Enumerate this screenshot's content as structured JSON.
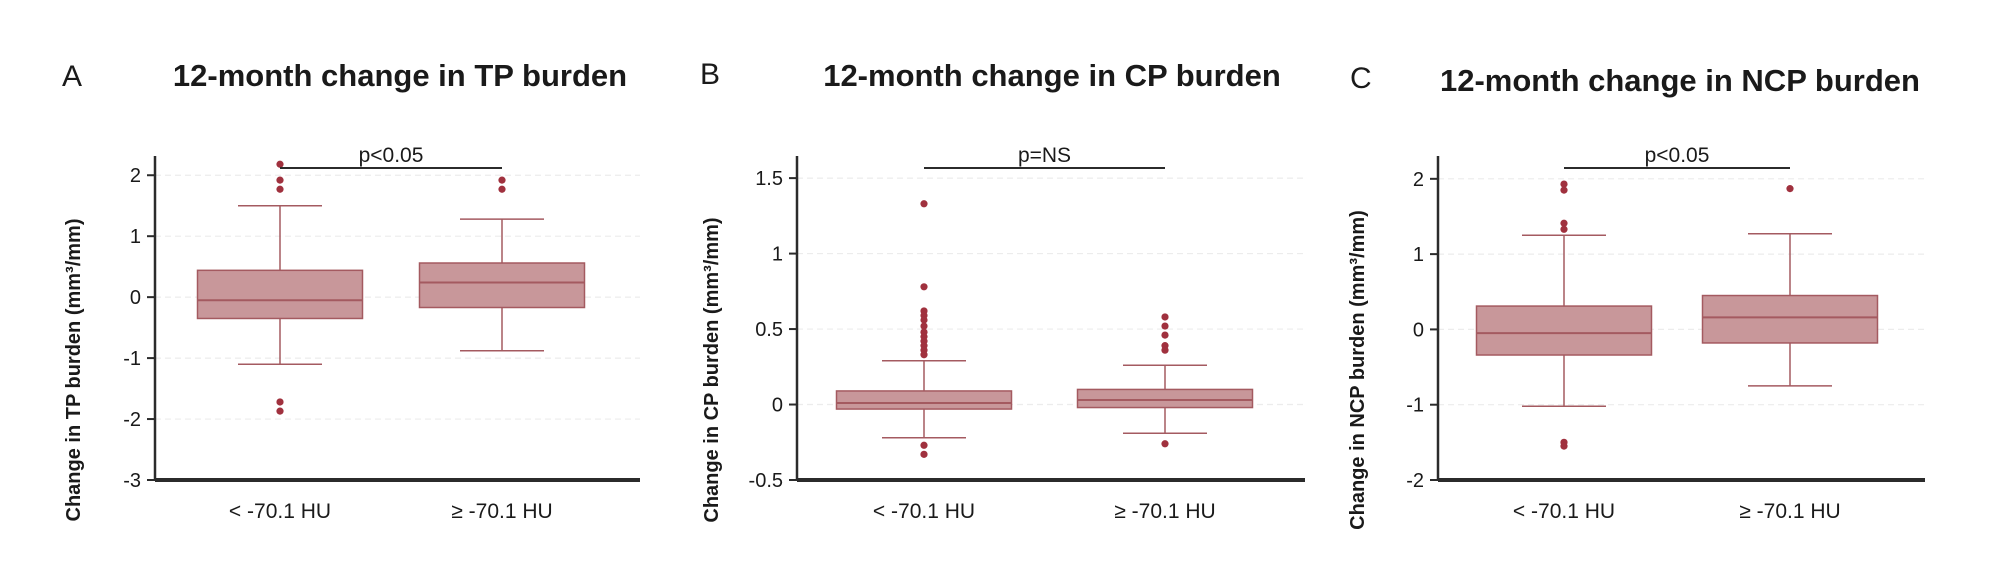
{
  "colors": {
    "box_fill": "#c8979a",
    "box_stroke": "#a45a60",
    "outlier": "#a0313e",
    "axis": "#2b2b2b",
    "gridline": "#ececec"
  },
  "chart_data": [
    {
      "type": "box",
      "panel_letter": "A",
      "title": "12-month change in TP burden",
      "ylabel": "Change in TP burden (mm³/mm)",
      "ylim": [
        -3,
        2.25
      ],
      "yticks": [
        -3,
        -2,
        -1,
        0,
        1,
        2
      ],
      "ytick_labels": [
        "-3",
        "-2",
        "-1",
        "0",
        "1",
        "2"
      ],
      "grid": "horizontal dashed",
      "categories": [
        "< -70.1 HU",
        "≥ -70.1 HU"
      ],
      "series": [
        {
          "category": "< -70.1 HU",
          "min": -1.1,
          "q1": -0.35,
          "median": -0.05,
          "q3": 0.44,
          "max": 1.5,
          "outliers": [
            2.18,
            1.92,
            1.77,
            -1.72,
            -1.87
          ]
        },
        {
          "category": "≥ -70.1 HU",
          "min": -0.88,
          "q1": -0.17,
          "median": 0.24,
          "q3": 0.56,
          "max": 1.28,
          "outliers": [
            1.92,
            1.77
          ]
        }
      ],
      "significance": {
        "label": "p<0.05",
        "between": [
          0,
          1
        ]
      }
    },
    {
      "type": "box",
      "panel_letter": "B",
      "title": "12-month change in CP burden",
      "ylabel": "Change in CP burden (mm³/mm)",
      "ylim": [
        -0.5,
        1.62
      ],
      "yticks": [
        -0.5,
        0,
        0.5,
        1,
        1.5
      ],
      "ytick_labels": [
        "-0.5",
        "0",
        "0.5",
        "1",
        "1.5"
      ],
      "grid": "horizontal dashed",
      "categories": [
        "< -70.1 HU",
        "≥ -70.1 HU"
      ],
      "series": [
        {
          "category": "< -70.1 HU",
          "min": -0.22,
          "q1": -0.03,
          "median": 0.01,
          "q3": 0.09,
          "max": 0.29,
          "outliers": [
            1.33,
            0.78,
            0.62,
            0.59,
            0.56,
            0.52,
            0.48,
            0.45,
            0.42,
            0.39,
            0.36,
            0.33,
            -0.27,
            -0.33
          ]
        },
        {
          "category": "≥ -70.1 HU",
          "min": -0.19,
          "q1": -0.02,
          "median": 0.03,
          "q3": 0.1,
          "max": 0.26,
          "outliers": [
            0.58,
            0.52,
            0.46,
            0.39,
            0.36,
            -0.26
          ]
        }
      ],
      "significance": {
        "label": "p=NS",
        "between": [
          0,
          1
        ]
      }
    },
    {
      "type": "box",
      "panel_letter": "C",
      "title": "12-month change in NCP burden",
      "ylabel": "Change in NCP burden (mm³/mm)",
      "ylim": [
        -2,
        2.25
      ],
      "yticks": [
        -2,
        -1,
        0,
        1,
        2
      ],
      "ytick_labels": [
        "-2",
        "-1",
        "0",
        "1",
        "2"
      ],
      "grid": "horizontal dashed",
      "categories": [
        "< -70.1 HU",
        "≥ -70.1 HU"
      ],
      "series": [
        {
          "category": "< -70.1 HU",
          "min": -1.02,
          "q1": -0.34,
          "median": -0.05,
          "q3": 0.31,
          "max": 1.25,
          "outliers": [
            1.93,
            1.85,
            1.41,
            1.33,
            -1.5,
            -1.55
          ]
        },
        {
          "category": "≥ -70.1 HU",
          "min": -0.75,
          "q1": -0.18,
          "median": 0.16,
          "q3": 0.45,
          "max": 1.27,
          "outliers": [
            1.87
          ]
        }
      ],
      "significance": {
        "label": "p<0.05",
        "between": [
          0,
          1
        ]
      }
    }
  ]
}
